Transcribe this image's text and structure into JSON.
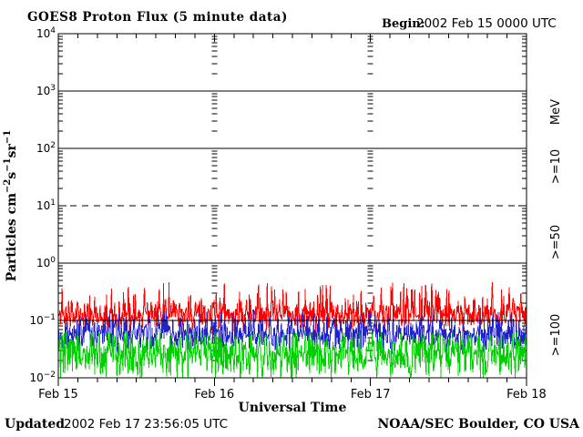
{
  "header": {
    "begin_label": "Begin:",
    "begin_value": "2002 Feb 15 0000 UTC"
  },
  "footer": {
    "updated_label": "Updated",
    "updated_value": "2002 Feb 17 23:56:05 UTC",
    "credit": "NOAA/SEC Boulder, CO USA"
  },
  "chart_data": {
    "type": "line",
    "title": "GOES8 Proton Flux (5 minute data)",
    "xlabel": "Universal Time",
    "ylabel_parts": [
      {
        "text": "Particles cm"
      },
      {
        "sup": "-2"
      },
      {
        "text": "s"
      },
      {
        "sup": "-1"
      },
      {
        "text": "sr"
      },
      {
        "sup": "-1"
      }
    ],
    "unit_label": "MeV",
    "x_ticks": [
      "Feb 15",
      "Feb 16",
      "Feb 17",
      "Feb 18"
    ],
    "x_range_days": 3,
    "minor_x_ticks_per_day": 8,
    "samples_per_day": 288,
    "y_tick_exponents": [
      4,
      3,
      2,
      1,
      0,
      -1,
      -2
    ],
    "ylim_exponents": [
      -2,
      4
    ],
    "yscale": "log",
    "grid_solid_exponents": [
      3,
      2,
      0,
      -1
    ],
    "grid_dashed_exponents": [
      1
    ],
    "interior_day_tick_columns": [
      1,
      2
    ],
    "legend_position": "right-rotated",
    "series": [
      {
        "name": ">=10",
        "unit": "MeV",
        "color": "#ff0000",
        "log10_median": -0.9,
        "log10_sigma": 0.13,
        "spike_prob": 0.09,
        "spike_max_log10": -0.33,
        "log10_min": -1.28,
        "log10_max": -0.3,
        "seed": 11
      },
      {
        "name": ">=50",
        "unit": "MeV",
        "color": "#2222cc",
        "log10_median": -1.24,
        "log10_sigma": 0.15,
        "spike_prob": 0.06,
        "spike_max_log10": -0.8,
        "log10_min": -1.78,
        "log10_max": -0.78,
        "seed": 22
      },
      {
        "name": ">=100",
        "unit": "MeV",
        "color": "#00d000",
        "log10_median": -1.6,
        "log10_sigma": 0.21,
        "spike_prob": 0.06,
        "spike_max_log10": -1.22,
        "log10_min": -2.0,
        "log10_max": -1.2,
        "seed": 33
      }
    ],
    "colors": {
      "axis": "#000000",
      "background": "#ffffff"
    }
  }
}
